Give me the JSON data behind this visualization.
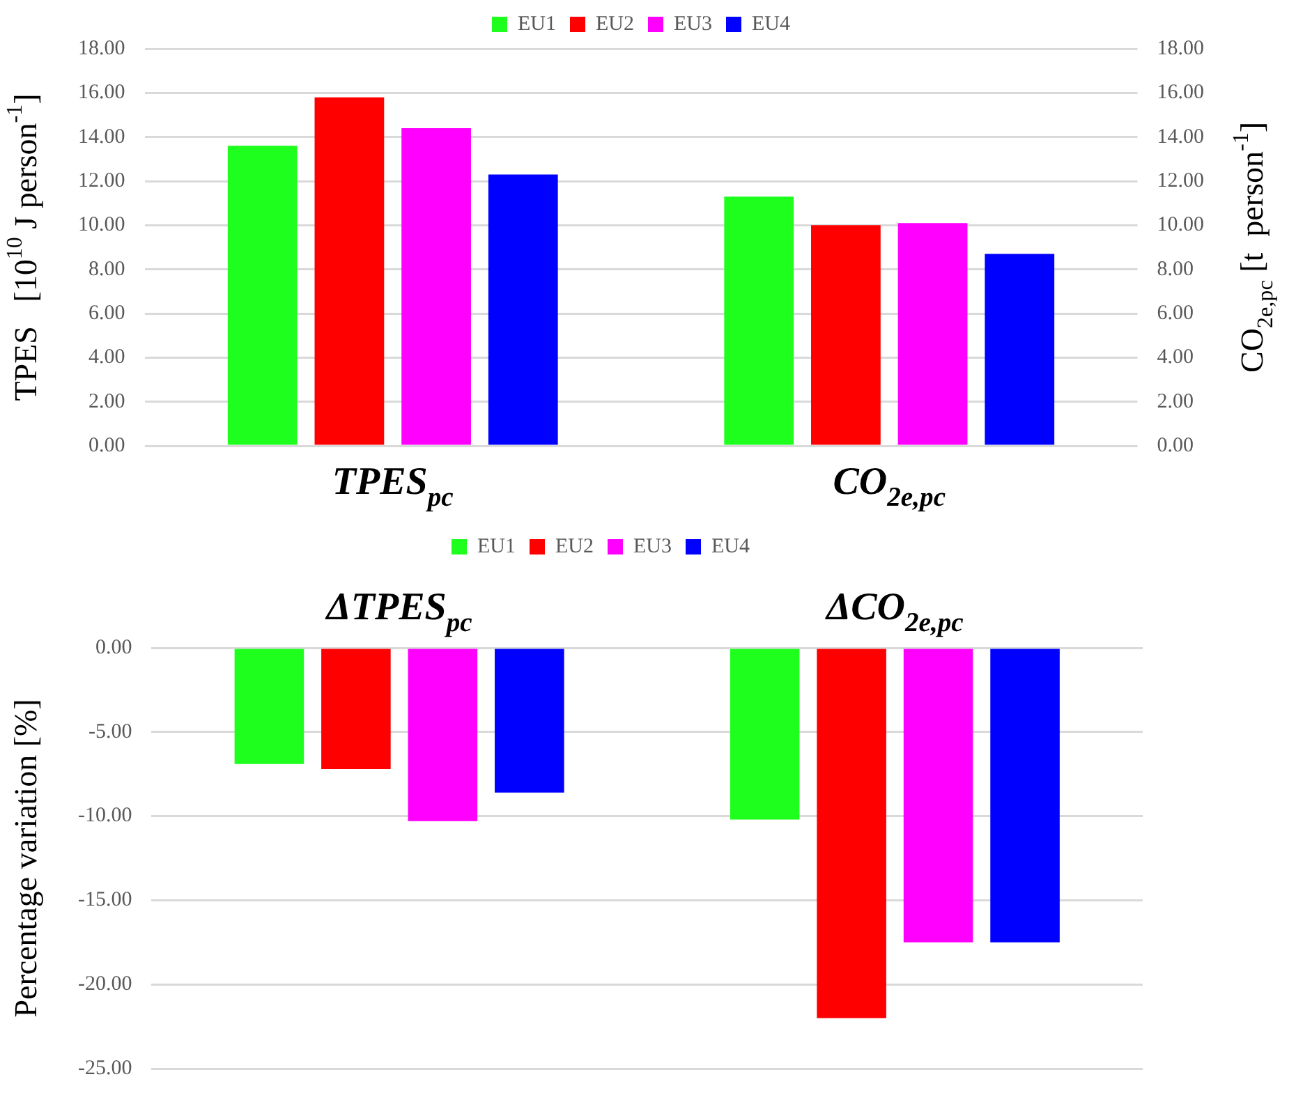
{
  "chart_data": [
    {
      "type": "bar",
      "categories": [
        "TPES$_{pc}$",
        "CO$_{2e,pc}$"
      ],
      "series": [
        {
          "name": "EU1",
          "color": "#1eff1e",
          "values": [
            13.6,
            11.3
          ]
        },
        {
          "name": "EU2",
          "color": "#ff0000",
          "values": [
            15.8,
            10.0
          ]
        },
        {
          "name": "EU3",
          "color": "#ff00ff",
          "values": [
            14.4,
            10.1
          ]
        },
        {
          "name": "EU4",
          "color": "#0000ff",
          "values": [
            12.3,
            8.7
          ]
        }
      ],
      "ylabel": "TPES   [10$^{10}$ J person$^{-1}$]",
      "y2label": "CO$_{2e,pc}$ [t  person$^{-1}$]",
      "ylim": [
        0,
        18
      ],
      "yticks": [
        {
          "value": 0,
          "label": "0.00"
        },
        {
          "value": 2,
          "label": "2.00"
        },
        {
          "value": 4,
          "label": "4.00"
        },
        {
          "value": 6,
          "label": "6.00"
        },
        {
          "value": 8,
          "label": "8.00"
        },
        {
          "value": 10,
          "label": "10.00"
        },
        {
          "value": 12,
          "label": "12.00"
        },
        {
          "value": 14,
          "label": "14.00"
        },
        {
          "value": 16,
          "label": "16.00"
        },
        {
          "value": 18,
          "label": "18.00"
        }
      ],
      "y2lim": [
        0,
        18
      ],
      "y2ticks": [
        {
          "value": 0,
          "label": "0.00"
        },
        {
          "value": 2,
          "label": "2.00"
        },
        {
          "value": 4,
          "label": "4.00"
        },
        {
          "value": 6,
          "label": "6.00"
        },
        {
          "value": 8,
          "label": "8.00"
        },
        {
          "value": 10,
          "label": "10.00"
        },
        {
          "value": 12,
          "label": "12.00"
        },
        {
          "value": 14,
          "label": "14.00"
        },
        {
          "value": 16,
          "label": "16.00"
        },
        {
          "value": 18,
          "label": "18.00"
        }
      ],
      "grid": "y",
      "legend": "top"
    },
    {
      "type": "bar",
      "categories": [
        "ΔTPES$_{pc}$",
        "ΔCO$_{2e,pc}$"
      ],
      "series": [
        {
          "name": "EU1",
          "color": "#1eff1e",
          "values": [
            -6.9,
            -10.2
          ]
        },
        {
          "name": "EU2",
          "color": "#ff0000",
          "values": [
            -7.2,
            -22.0
          ]
        },
        {
          "name": "EU3",
          "color": "#ff00ff",
          "values": [
            -10.3,
            -17.5
          ]
        },
        {
          "name": "EU4",
          "color": "#0000ff",
          "values": [
            -8.6,
            -17.5
          ]
        }
      ],
      "ylabel": "Percentage variation [%]",
      "ylim": [
        -25,
        0
      ],
      "yticks": [
        {
          "value": -25,
          "label": "-25.00"
        },
        {
          "value": -20,
          "label": "-20.00"
        },
        {
          "value": -15,
          "label": "-15.00"
        },
        {
          "value": -10,
          "label": "-10.00"
        },
        {
          "value": -5,
          "label": "-5.00"
        },
        {
          "value": 0,
          "label": "0.00"
        }
      ],
      "grid": "y",
      "legend": "top"
    }
  ]
}
